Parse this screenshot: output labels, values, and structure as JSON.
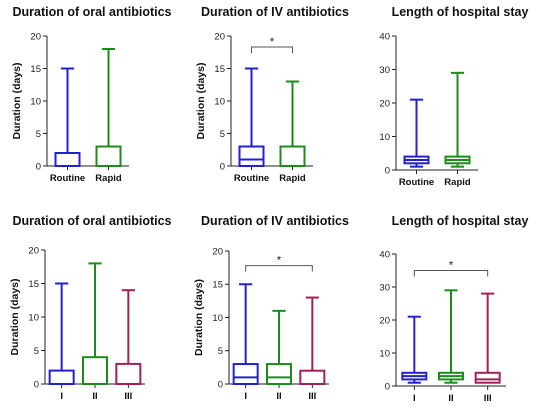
{
  "colors": {
    "blue": "#2222cc",
    "green": "#1c8c1c",
    "maroon": "#a0205a"
  },
  "chart_data": [
    {
      "type": "boxplot",
      "title": "Duration of oral antibiotics",
      "ylabel": "Duration (days)",
      "ylim": [
        0,
        20
      ],
      "yticks": [
        0,
        5,
        10,
        15,
        20
      ],
      "categories": [
        "Routine",
        "Rapid"
      ],
      "boxes": [
        {
          "name": "Routine",
          "min": 0,
          "q1": 0,
          "median": 0,
          "q3": 2,
          "max": 15,
          "color": "blue"
        },
        {
          "name": "Rapid",
          "min": 0,
          "q1": 0,
          "median": 0,
          "q3": 3,
          "max": 18,
          "color": "green"
        }
      ],
      "significance": []
    },
    {
      "type": "boxplot",
      "title": "Duration of IV antibiotics",
      "ylabel": "Duration (days)",
      "ylim": [
        0,
        20
      ],
      "yticks": [
        0,
        5,
        10,
        15,
        20
      ],
      "categories": [
        "Routine",
        "Rapid"
      ],
      "boxes": [
        {
          "name": "Routine",
          "min": 0,
          "q1": 0,
          "median": 1,
          "q3": 3,
          "max": 15,
          "color": "blue"
        },
        {
          "name": "Rapid",
          "min": 0,
          "q1": 0,
          "median": 0,
          "q3": 3,
          "max": 13,
          "color": "green"
        }
      ],
      "significance": [
        {
          "from": 0,
          "to": 1,
          "y": 18.3,
          "label": "*"
        }
      ]
    },
    {
      "type": "boxplot",
      "title": "Length of hospital stay",
      "ylabel": "",
      "ylim": [
        0,
        40
      ],
      "yticks": [
        0,
        10,
        20,
        30,
        40
      ],
      "categories": [
        "Routine",
        "Rapid"
      ],
      "boxes": [
        {
          "name": "Routine",
          "min": 1,
          "q1": 2,
          "median": 3,
          "q3": 4,
          "max": 21,
          "color": "blue"
        },
        {
          "name": "Rapid",
          "min": 1,
          "q1": 2,
          "median": 3,
          "q3": 4,
          "max": 29,
          "color": "green"
        }
      ],
      "significance": []
    },
    {
      "type": "boxplot",
      "title": "Duration of oral antibiotics",
      "ylabel": "Duration (days)",
      "ylim": [
        0,
        20
      ],
      "yticks": [
        0,
        5,
        10,
        15,
        20
      ],
      "categories": [
        "I",
        "II",
        "III"
      ],
      "boxes": [
        {
          "name": "I",
          "min": 0,
          "q1": 0,
          "median": 0,
          "q3": 2,
          "max": 15,
          "color": "blue"
        },
        {
          "name": "II",
          "min": 0,
          "q1": 0,
          "median": 0,
          "q3": 4,
          "max": 18,
          "color": "green"
        },
        {
          "name": "III",
          "min": 0,
          "q1": 0,
          "median": 0,
          "q3": 3,
          "max": 14,
          "color": "maroon"
        }
      ],
      "significance": []
    },
    {
      "type": "boxplot",
      "title": "Duration of IV antibiotics",
      "ylabel": "Duration (days)",
      "ylim": [
        0,
        20
      ],
      "yticks": [
        0,
        5,
        10,
        15,
        20
      ],
      "categories": [
        "I",
        "II",
        "III"
      ],
      "boxes": [
        {
          "name": "I",
          "min": 0,
          "q1": 0,
          "median": 1,
          "q3": 3,
          "max": 15,
          "color": "blue"
        },
        {
          "name": "II",
          "min": 0,
          "q1": 0,
          "median": 1,
          "q3": 3,
          "max": 11,
          "color": "green"
        },
        {
          "name": "III",
          "min": 0,
          "q1": 0,
          "median": 0,
          "q3": 2,
          "max": 13,
          "color": "maroon"
        }
      ],
      "significance": [
        {
          "from": 0,
          "to": 2,
          "y": 17.8,
          "label": "*"
        }
      ]
    },
    {
      "type": "boxplot",
      "title": "Length of hospital stay",
      "ylabel": "",
      "ylim": [
        0,
        40
      ],
      "yticks": [
        0,
        10,
        20,
        30,
        40
      ],
      "categories": [
        "I",
        "II",
        "III"
      ],
      "boxes": [
        {
          "name": "I",
          "min": 1,
          "q1": 2,
          "median": 3,
          "q3": 4,
          "max": 21,
          "color": "blue"
        },
        {
          "name": "II",
          "min": 1,
          "q1": 2,
          "median": 3,
          "q3": 4,
          "max": 29,
          "color": "green"
        },
        {
          "name": "III",
          "min": 1,
          "q1": 1,
          "median": 2,
          "q3": 4,
          "max": 28,
          "color": "maroon"
        }
      ],
      "significance": [
        {
          "from": 0,
          "to": 2,
          "y": 35,
          "label": "*"
        }
      ]
    }
  ]
}
